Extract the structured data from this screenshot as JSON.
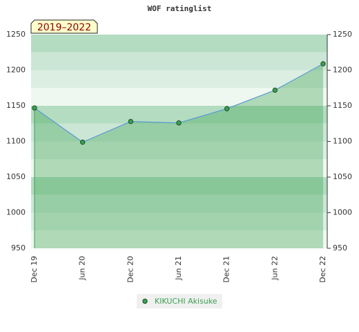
{
  "chart_data": {
    "type": "line",
    "title": "WOF ratinglist",
    "subtitle": "2019–2022",
    "categories": [
      "Dec 19",
      "Jun 20",
      "Dec 20",
      "Jun 21",
      "Dec 21",
      "Jun 22",
      "Dec 22"
    ],
    "series": [
      {
        "name": "KIKUCHI Akisuke",
        "color": "#3aa04e",
        "values": [
          1147,
          1099,
          1128,
          1126,
          1146,
          1172,
          1209
        ]
      }
    ],
    "ylim": [
      950,
      1250
    ],
    "yticks": [
      950,
      1000,
      1050,
      1100,
      1150,
      1200,
      1250
    ]
  }
}
